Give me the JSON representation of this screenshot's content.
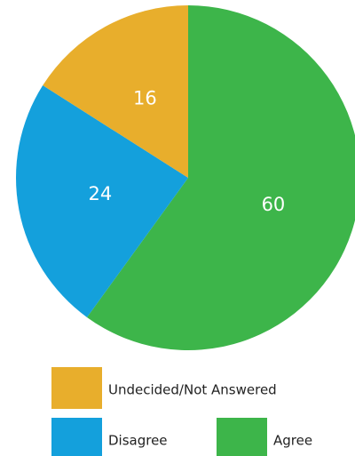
{
  "chart_data": {
    "type": "pie",
    "categories": [
      "Agree",
      "Disagree",
      "Undecided/Not Answered"
    ],
    "values": [
      60,
      24,
      16
    ],
    "colors": [
      "#3db54a",
      "#14a0dc",
      "#e8ae2c"
    ]
  }
}
